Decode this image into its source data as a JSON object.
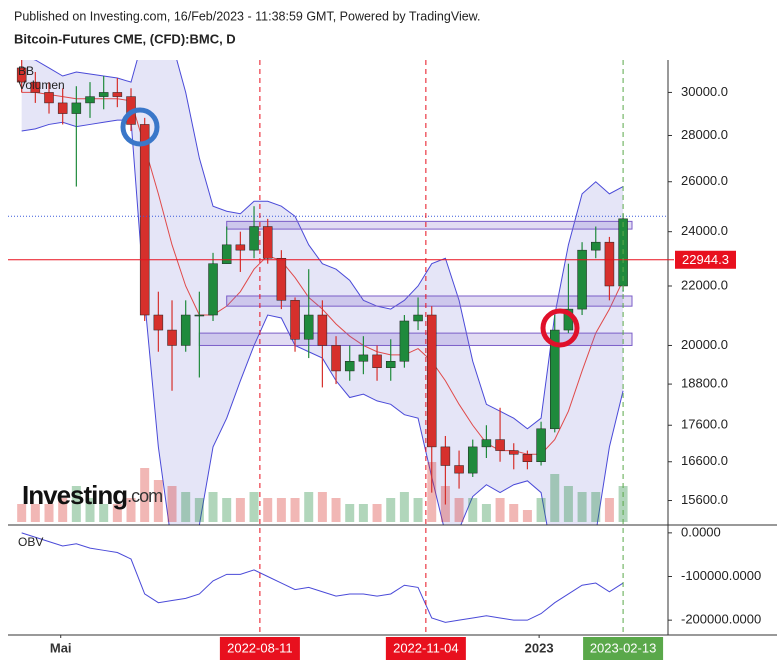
{
  "header": {
    "source": "Published on Investing.com, 16/Feb/2023 - 11:38:59 GMT, Powered by TradingView.",
    "title": "Bitcoin-Futures CME, (CFD):BMC, D"
  },
  "watermark": {
    "name": "Investing",
    "suffix": ".com"
  },
  "chart_data": [
    {
      "type": "candlestick",
      "log_scale": true,
      "xlim": [
        "2022-04-04",
        "2023-03-08"
      ],
      "xticks": [
        {
          "value": "2022-05",
          "label": "Mai"
        },
        {
          "value": "2022-08-11",
          "label": "2022-08-11",
          "color": "#e8101e"
        },
        {
          "value": "2022-11-04",
          "label": "2022-11-04",
          "color": "#e8101e"
        },
        {
          "value": "2023",
          "label": "2023"
        },
        {
          "value": "2023-02-13",
          "label": "2023-02-13",
          "color": "#5aa84a"
        }
      ],
      "ylim": [
        15000,
        31600
      ],
      "yticks": [
        {
          "value": 30000,
          "label": "30000.0"
        },
        {
          "value": 28000,
          "label": "28000.0"
        },
        {
          "value": 26000,
          "label": "26000.0"
        },
        {
          "value": 24000,
          "label": "24000.0"
        },
        {
          "value": 22000,
          "label": "22000.0"
        },
        {
          "value": 20000,
          "label": "20000.0"
        },
        {
          "value": 18800,
          "label": "18800.0"
        },
        {
          "value": 17600,
          "label": "17600.0"
        },
        {
          "value": 16600,
          "label": "16600.0"
        },
        {
          "value": 15600,
          "label": "15600.0"
        }
      ],
      "up_color": "#1f8a3c",
      "down_color": "#d6302c",
      "x": [
        "2022-04-11",
        "2022-04-18",
        "2022-04-25",
        "2022-05-02",
        "2022-05-09",
        "2022-05-16",
        "2022-05-23",
        "2022-05-30",
        "2022-06-06",
        "2022-06-13",
        "2022-06-20",
        "2022-06-27",
        "2022-07-04",
        "2022-07-11",
        "2022-07-18",
        "2022-07-25",
        "2022-08-01",
        "2022-08-08",
        "2022-08-15",
        "2022-08-22",
        "2022-08-29",
        "2022-09-05",
        "2022-09-12",
        "2022-09-19",
        "2022-09-26",
        "2022-10-03",
        "2022-10-10",
        "2022-10-17",
        "2022-10-24",
        "2022-10-31",
        "2022-11-07",
        "2022-11-14",
        "2022-11-21",
        "2022-11-28",
        "2022-12-05",
        "2022-12-12",
        "2022-12-19",
        "2022-12-26",
        "2023-01-02",
        "2023-01-09",
        "2023-01-16",
        "2023-01-23",
        "2023-01-30",
        "2023-02-06",
        "2023-02-13"
      ],
      "open": [
        31200,
        30500,
        30000,
        29500,
        29000,
        29500,
        29800,
        30000,
        29800,
        28500,
        21000,
        20500,
        20000,
        21000,
        21000,
        22800,
        23500,
        23300,
        24200,
        23000,
        21500,
        20200,
        21000,
        20000,
        19200,
        19500,
        19700,
        19300,
        19500,
        20800,
        21000,
        17000,
        16500,
        16300,
        17000,
        17200,
        16900,
        16800,
        16600,
        17500,
        20500,
        21200,
        23300,
        23600,
        22000
      ],
      "high": [
        31800,
        31000,
        30500,
        30200,
        30300,
        30500,
        30800,
        30700,
        30200,
        28800,
        21800,
        21500,
        21500,
        21800,
        23200,
        24200,
        24000,
        25000,
        24500,
        23300,
        21600,
        22600,
        21500,
        20300,
        20000,
        20300,
        20000,
        20200,
        21000,
        21600,
        21300,
        17300,
        16900,
        17200,
        17600,
        18100,
        17100,
        16900,
        17700,
        21000,
        22800,
        23600,
        24200,
        23800,
        24700
      ],
      "low": [
        30000,
        29500,
        29000,
        28500,
        25800,
        28800,
        29200,
        29300,
        28200,
        20800,
        19800,
        18600,
        19800,
        19000,
        20800,
        22800,
        22500,
        23000,
        22800,
        21200,
        19800,
        19600,
        18700,
        18800,
        18900,
        19100,
        18900,
        18900,
        19300,
        20500,
        15800,
        15500,
        15900,
        16200,
        16700,
        16600,
        16400,
        16400,
        16500,
        17400,
        20400,
        21000,
        23000,
        21500,
        21800
      ],
      "close": [
        30500,
        30000,
        29500,
        29000,
        29500,
        29800,
        30000,
        29800,
        28500,
        21000,
        20500,
        20000,
        21000,
        21000,
        22800,
        23500,
        23300,
        24200,
        23000,
        21500,
        20200,
        21000,
        20000,
        19200,
        19500,
        19700,
        19300,
        19500,
        20800,
        21000,
        17000,
        16500,
        16300,
        17000,
        17200,
        16900,
        16800,
        16600,
        17500,
        20500,
        21200,
        23300,
        23600,
        22000,
        24500
      ],
      "bollinger": {
        "name": "BB",
        "color": "#4a4ad8",
        "fill": "rgba(110,110,210,0.18)",
        "mid_color": "#e04a4a",
        "upper": [
          31800,
          31600,
          31200,
          30800,
          31000,
          30900,
          30800,
          30700,
          30500,
          33000,
          33500,
          32500,
          30000,
          27000,
          25000,
          24800,
          24700,
          25200,
          25200,
          25000,
          24600,
          23500,
          22800,
          22600,
          22200,
          21500,
          21300,
          21200,
          21500,
          22000,
          22800,
          23000,
          21500,
          19500,
          18200,
          18000,
          17800,
          17500,
          17800,
          21000,
          23500,
          25500,
          26000,
          25500,
          25800
        ],
        "middle": [
          30000,
          30000,
          29900,
          29800,
          29700,
          29700,
          29700,
          29700,
          29600,
          27500,
          25500,
          23500,
          22000,
          21000,
          21000,
          21300,
          21800,
          22600,
          23100,
          22900,
          22300,
          21600,
          21200,
          20700,
          20300,
          20000,
          19800,
          19700,
          19700,
          19900,
          19500,
          18900,
          18200,
          17600,
          17100,
          16900,
          16900,
          16800,
          16800,
          17200,
          18000,
          19200,
          20400,
          21200,
          22200
        ],
        "lower": [
          28200,
          28300,
          28500,
          28600,
          28400,
          28500,
          28600,
          28700,
          28700,
          21500,
          17000,
          14500,
          14000,
          15000,
          17000,
          17800,
          18900,
          20000,
          21000,
          20900,
          20000,
          19800,
          19600,
          18900,
          18400,
          18500,
          18300,
          18200,
          17900,
          17800,
          16200,
          14800,
          14900,
          15700,
          16000,
          15800,
          16000,
          16100,
          15800,
          14000,
          12500,
          13000,
          14800,
          17000,
          18600
        ]
      },
      "volume": {
        "name": "Volumen",
        "values": [
          3,
          3,
          3,
          4,
          6,
          4,
          3,
          3,
          4,
          9,
          7,
          6,
          5,
          4,
          5,
          4,
          4,
          5,
          4,
          4,
          4,
          5,
          5,
          4,
          3,
          3,
          3,
          4,
          5,
          4,
          10,
          6,
          4,
          4,
          3,
          4,
          3,
          2,
          4,
          8,
          6,
          5,
          5,
          4,
          6
        ]
      },
      "zones": [
        {
          "start": "2022-07-25",
          "low": 24100,
          "high": 24400
        },
        {
          "start": "2022-07-25",
          "low": 21300,
          "high": 21650
        },
        {
          "start": "2022-07-11",
          "low": 20000,
          "high": 20400
        }
      ],
      "zone_color": "#7b5ec8",
      "price_line": {
        "value": 22944.3,
        "color": "#e8101e"
      },
      "last_price": {
        "value": 24600,
        "color": "#3b5bdb"
      }
    },
    {
      "type": "line",
      "ylim": [
        -234000,
        18000
      ],
      "yticks": [
        {
          "value": 0,
          "label": "0.0000"
        },
        {
          "value": -100000,
          "label": "-100000.0000"
        },
        {
          "value": -200000,
          "label": "-200000.0000"
        }
      ],
      "series": [
        {
          "name": "OBV",
          "color": "#4a4ad8",
          "values": [
            0,
            -10000,
            -20000,
            -30000,
            -25000,
            -35000,
            -40000,
            -45000,
            -60000,
            -140000,
            -160000,
            -155000,
            -150000,
            -140000,
            -110000,
            -95000,
            -95000,
            -85000,
            -100000,
            -115000,
            -130000,
            -125000,
            -135000,
            -145000,
            -140000,
            -140000,
            -145000,
            -140000,
            -120000,
            -125000,
            -195000,
            -205000,
            -200000,
            -195000,
            -190000,
            -195000,
            -200000,
            -200000,
            -185000,
            -160000,
            -140000,
            -120000,
            -115000,
            -135000,
            -115000
          ]
        }
      ]
    }
  ]
}
